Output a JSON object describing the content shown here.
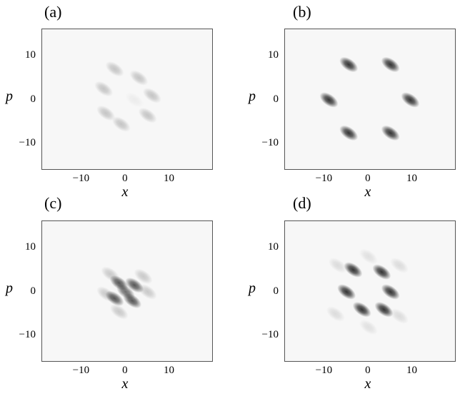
{
  "chart_data": [
    {
      "type": "heatmap",
      "panel_label": "(a)",
      "xlabel": "x",
      "ylabel": "p",
      "xticks": [
        -10,
        0,
        10
      ],
      "yticks": [
        10,
        0,
        -10
      ],
      "xticklabels": [
        "−10",
        "0",
        "10"
      ],
      "yticklabels": [
        "10",
        "0",
        "−10"
      ],
      "xlim": [
        -19,
        20
      ],
      "ylim": [
        -16,
        16
      ],
      "colormap": "grayscale, darker = higher magnitude",
      "peaks": [
        {
          "x": -2.5,
          "y": 7.0,
          "amp": 0.22
        },
        {
          "x": 3.0,
          "y": 5.0,
          "amp": 0.22
        },
        {
          "x": -5.0,
          "y": 2.5,
          "amp": 0.22
        },
        {
          "x": 6.0,
          "y": 1.0,
          "amp": 0.22
        },
        {
          "x": -4.5,
          "y": -3.0,
          "amp": 0.22
        },
        {
          "x": 5.0,
          "y": -3.5,
          "amp": 0.22
        },
        {
          "x": -1.0,
          "y": -5.5,
          "amp": 0.22
        },
        {
          "x": 2.0,
          "y": 0.0,
          "amp": 0.05
        }
      ]
    },
    {
      "type": "heatmap",
      "panel_label": "(b)",
      "xlabel": "x",
      "ylabel": "p",
      "xticks": [
        -10,
        0,
        10
      ],
      "yticks": [
        10,
        0,
        -10
      ],
      "xticklabels": [
        "−10",
        "0",
        "10"
      ],
      "yticklabels": [
        "10",
        "0",
        "−10"
      ],
      "xlim": [
        -19,
        20
      ],
      "ylim": [
        -16,
        16
      ],
      "colormap": "grayscale, darker = higher magnitude",
      "peaks": [
        {
          "x": -4.5,
          "y": 8.0,
          "amp": 0.85
        },
        {
          "x": 5.0,
          "y": 8.0,
          "amp": 0.85
        },
        {
          "x": -9.0,
          "y": 0.0,
          "amp": 0.85
        },
        {
          "x": 9.5,
          "y": 0.0,
          "amp": 0.85
        },
        {
          "x": -4.5,
          "y": -7.5,
          "amp": 0.85
        },
        {
          "x": 5.0,
          "y": -7.5,
          "amp": 0.85
        }
      ]
    },
    {
      "type": "heatmap",
      "panel_label": "(c)",
      "xlabel": "x",
      "ylabel": "p",
      "xticks": [
        -10,
        0,
        10
      ],
      "yticks": [
        10,
        0,
        -10
      ],
      "xticklabels": [
        "−10",
        "0",
        "10"
      ],
      "yticklabels": [
        "10",
        "0",
        "−10"
      ],
      "xlim": [
        -19,
        20
      ],
      "ylim": [
        -16,
        16
      ],
      "colormap": "grayscale, darker = higher magnitude",
      "peaks": [
        {
          "x": -1.5,
          "y": 2.0,
          "amp": 0.7
        },
        {
          "x": 2.0,
          "y": 1.5,
          "amp": 0.7
        },
        {
          "x": -2.5,
          "y": -1.5,
          "amp": 0.7
        },
        {
          "x": 1.5,
          "y": -2.0,
          "amp": 0.7
        },
        {
          "x": 0.0,
          "y": 0.0,
          "amp": 0.6
        },
        {
          "x": -3.5,
          "y": 4.0,
          "amp": 0.2
        },
        {
          "x": 4.0,
          "y": 3.5,
          "amp": 0.2
        },
        {
          "x": -4.5,
          "y": -0.5,
          "amp": 0.2
        },
        {
          "x": 5.0,
          "y": 0.0,
          "amp": 0.2
        },
        {
          "x": -1.5,
          "y": -4.5,
          "amp": 0.2
        }
      ]
    },
    {
      "type": "heatmap",
      "panel_label": "(d)",
      "xlabel": "x",
      "ylabel": "p",
      "xticks": [
        -10,
        0,
        10
      ],
      "yticks": [
        10,
        0,
        -10
      ],
      "xticklabels": [
        "−10",
        "0",
        "10"
      ],
      "yticklabels": [
        "10",
        "0",
        "−10"
      ],
      "xlim": [
        -19,
        20
      ],
      "ylim": [
        -16,
        16
      ],
      "colormap": "grayscale, darker = higher magnitude",
      "peaks": [
        {
          "x": -3.5,
          "y": 5.0,
          "amp": 0.85
        },
        {
          "x": 3.0,
          "y": 4.5,
          "amp": 0.85
        },
        {
          "x": -5.0,
          "y": 0.0,
          "amp": 0.85
        },
        {
          "x": 5.0,
          "y": 0.0,
          "amp": 0.85
        },
        {
          "x": -1.5,
          "y": -4.0,
          "amp": 0.85
        },
        {
          "x": 3.5,
          "y": -4.0,
          "amp": 0.85
        },
        {
          "x": -7.0,
          "y": 6.0,
          "amp": 0.12
        },
        {
          "x": 7.0,
          "y": 6.0,
          "amp": 0.12
        },
        {
          "x": -7.5,
          "y": -5.0,
          "amp": 0.12
        },
        {
          "x": 7.0,
          "y": -5.5,
          "amp": 0.12
        },
        {
          "x": 0.0,
          "y": 8.0,
          "amp": 0.1
        },
        {
          "x": 0.0,
          "y": -8.0,
          "amp": 0.1
        }
      ]
    }
  ]
}
